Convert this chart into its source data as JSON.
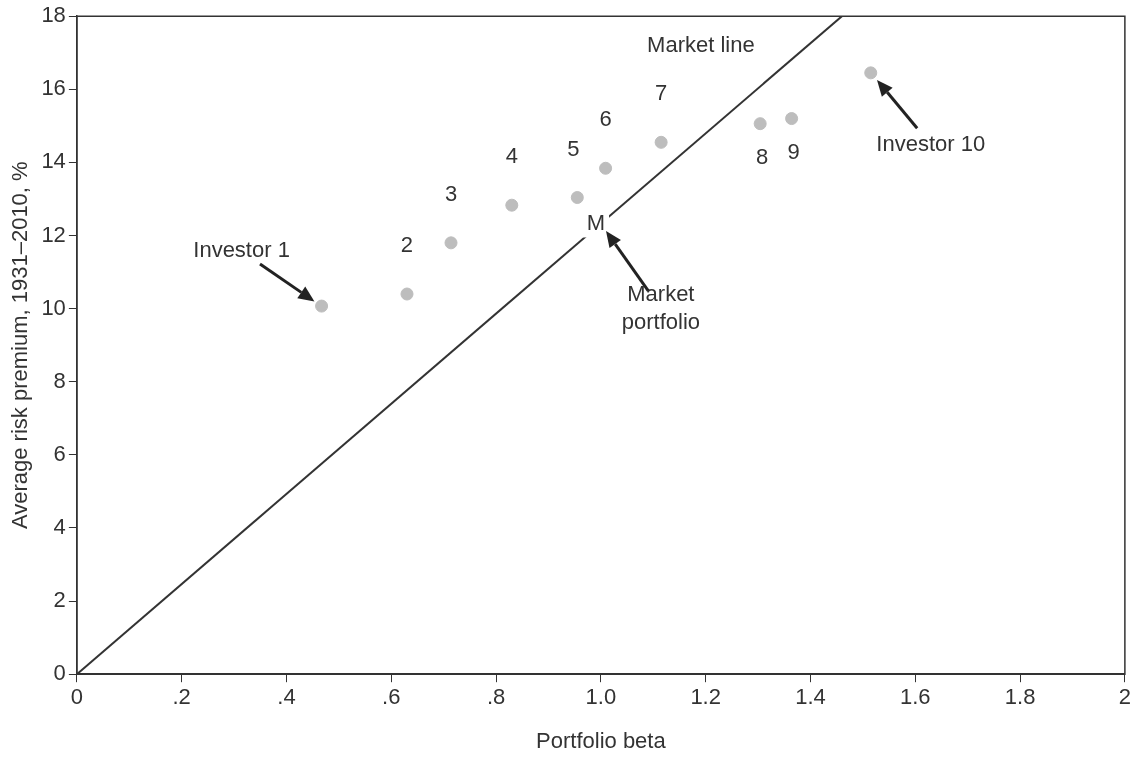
{
  "chart_data": {
    "type": "scatter",
    "xlabel": "Portfolio beta",
    "ylabel": "Average risk premium, 1931–2010, %",
    "series": [
      {
        "color": "#bdbdbd",
        "x": [
          0.467,
          0.63,
          0.714,
          0.83,
          0.955,
          1.009,
          1.115,
          1.304,
          1.364,
          1.515
        ],
        "values": [
          10.07,
          10.4,
          11.8,
          12.83,
          13.04,
          13.84,
          14.55,
          15.06,
          15.2,
          16.45
        ]
      },
      {
        "type": "line",
        "marker": "none",
        "color": "#333333",
        "x": [
          0,
          1.46
        ],
        "values": [
          0,
          18
        ]
      }
    ],
    "xlim": [
      0,
      2
    ],
    "xticks": [
      0,
      {
        "value": 0.2,
        "label": ".2"
      },
      {
        "value": 0.4,
        "label": ".4"
      },
      {
        "value": 0.6,
        "label": ".6"
      },
      {
        "value": 0.8,
        "label": ".8"
      },
      {
        "value": 1,
        "label": "1.0"
      },
      1.2,
      1.4,
      1.6,
      1.8,
      2
    ],
    "ylim": [
      0,
      18
    ],
    "yticks": [
      0,
      2,
      4,
      6,
      8,
      10,
      12,
      14,
      16,
      18
    ],
    "grid": false,
    "legend": false,
    "marker": "circle",
    "line_style": "solid",
    "annotations": [
      {
        "text": "Investor 1",
        "x": 0.467,
        "y": 10.07
      },
      {
        "text": "2",
        "x": 0.63,
        "y": 10.4
      },
      {
        "text": "3",
        "x": 0.714,
        "y": 11.8
      },
      {
        "text": "4",
        "x": 0.83,
        "y": 12.83
      },
      {
        "text": "5",
        "x": 0.955,
        "y": 13.04
      },
      {
        "text": "6",
        "x": 1.009,
        "y": 13.84
      },
      {
        "text": "7",
        "x": 1.115,
        "y": 14.55
      },
      {
        "text": "8",
        "x": 1.304,
        "y": 15.06
      },
      {
        "text": "9",
        "x": 1.364,
        "y": 15.2
      },
      {
        "text": "Investor 10",
        "x": 1.515,
        "y": 16.45
      },
      {
        "text": "M",
        "x": 1.0,
        "y": 12.33
      },
      {
        "text": "Market portfolio",
        "x": 1.0,
        "y": 12.33
      },
      "Market line"
    ]
  }
}
